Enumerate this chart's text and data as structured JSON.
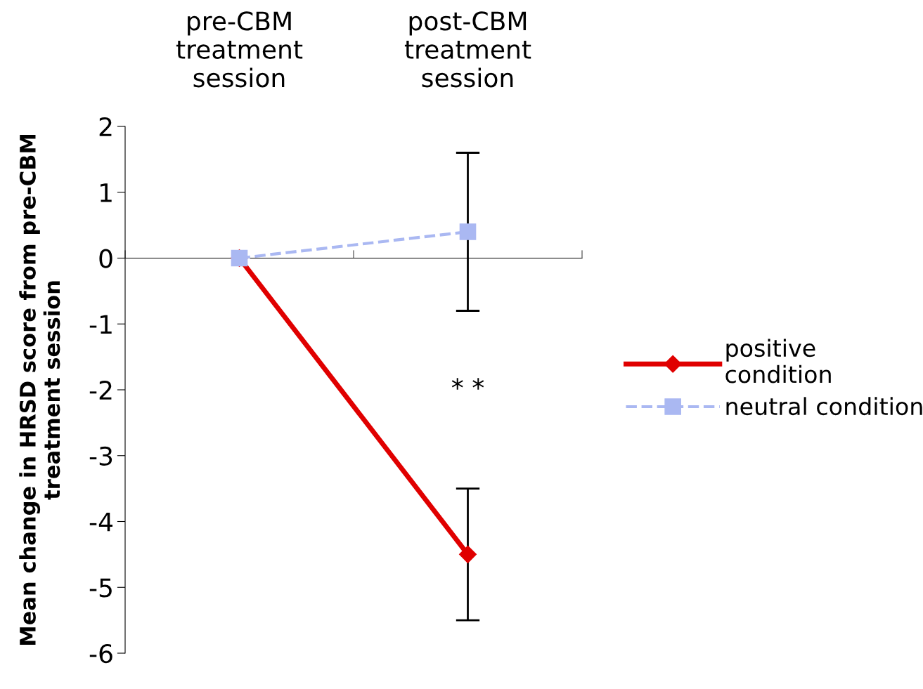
{
  "chart_data": {
    "type": "line",
    "categories": [
      "pre-CBM\ntreatment\nsession",
      "post-CBM\ntreatment\nsession"
    ],
    "ylabel": "Mean change in HRSD score from pre-CBM\ntreatment session",
    "ylim": [
      -6,
      2
    ],
    "yticks": [
      -6,
      -5,
      -4,
      -3,
      -2,
      -1,
      0,
      1,
      2
    ],
    "legend": "right",
    "series": [
      {
        "name": "positive\ncondition",
        "color": "#e00000",
        "values": [
          0,
          -4.5
        ],
        "errors": [
          null,
          1.0
        ],
        "marker": "diamond",
        "line_style": "solid"
      },
      {
        "name": "neutral condition",
        "color": "#aab8f2",
        "values": [
          0,
          0.4
        ],
        "errors": [
          null,
          1.2
        ],
        "marker": "square",
        "line_style": "dashed"
      }
    ],
    "annotations": [
      "* *"
    ]
  }
}
